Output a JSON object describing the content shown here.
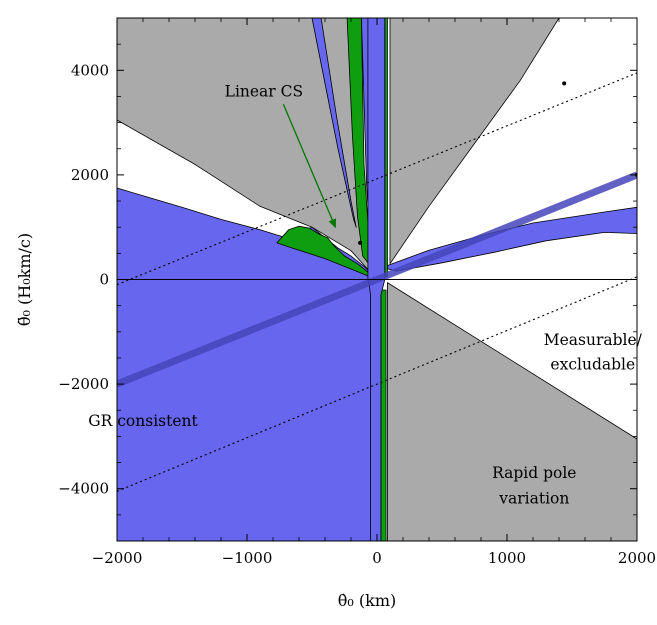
{
  "chart_data": {
    "type": "area",
    "title": "",
    "xlabel": "θ̇₀ (km)",
    "ylabel": "θ̈₀ (H₀km/c)",
    "xlim": [
      -2000,
      2000
    ],
    "ylim": [
      -5000,
      5000
    ],
    "x_ticks": [
      -2000,
      -1000,
      0,
      1000,
      2000
    ],
    "x_tick_labels": [
      "−2000",
      "−1000",
      "0",
      "1000",
      "2000"
    ],
    "y_ticks": [
      -4000,
      -2000,
      0,
      2000,
      4000
    ],
    "y_tick_labels": [
      "−4000",
      "−2000",
      "0",
      "2000",
      "4000"
    ],
    "grid": false,
    "colors": {
      "gray": "#aaaaaa",
      "blue": "#6666ee",
      "green": "#0f9e0f",
      "band": "#4646bb",
      "outline": "#000000",
      "annotation_green": "#007700"
    },
    "regions": [
      {
        "category": "rapid-pole-variation",
        "color": "gray",
        "polygons": [
          [
            [
              -2000,
              5000
            ],
            [
              -200,
              5000
            ],
            [
              -150,
              2500
            ],
            [
              -110,
              1500
            ],
            [
              -70,
              800
            ],
            [
              -30,
              300
            ],
            [
              0,
              0
            ],
            [
              -200,
              550
            ],
            [
              -500,
              1000
            ],
            [
              -900,
              1400
            ],
            [
              -1400,
              2200
            ],
            [
              -2000,
              3050
            ]
          ],
          [
            [
              100,
              5000
            ],
            [
              100,
              300
            ],
            [
              400,
              1400
            ],
            [
              750,
              2600
            ],
            [
              1100,
              3800
            ],
            [
              1400,
              5000
            ]
          ],
          [
            [
              80,
              -5000
            ],
            [
              80,
              -60
            ],
            [
              2000,
              -3050
            ],
            [
              2000,
              -5000
            ]
          ]
        ]
      },
      {
        "category": "blue-wedges",
        "color": "blue",
        "polygons": [
          [
            [
              -500,
              5000
            ],
            [
              -430,
              5000
            ],
            [
              -310,
              3100
            ],
            [
              -200,
              1500
            ],
            [
              -160,
              1000
            ],
            [
              -180,
              1150
            ],
            [
              -300,
              2500
            ]
          ],
          [
            [
              -120,
              5000
            ],
            [
              -20,
              5000
            ],
            [
              0,
              300
            ],
            [
              -20,
              150
            ],
            [
              -40,
              300
            ],
            [
              -80,
              1800
            ]
          ],
          [
            [
              40,
              230
            ],
            [
              400,
              560
            ],
            [
              800,
              840
            ],
            [
              1200,
              1080
            ],
            [
              1750,
              1290
            ],
            [
              2000,
              1380
            ],
            [
              2000,
              880
            ],
            [
              1750,
              900
            ],
            [
              1300,
              740
            ],
            [
              900,
              520
            ],
            [
              500,
              320
            ],
            [
              150,
              160
            ]
          ]
        ]
      },
      {
        "category": "gr-consistent",
        "color": "blue",
        "polygons": [
          [
            [
              -2000,
              1750
            ],
            [
              -1800,
              1600
            ],
            [
              -1500,
              1380
            ],
            [
              -1200,
              1150
            ],
            [
              -900,
              950
            ],
            [
              -700,
              800
            ],
            [
              -500,
              1000
            ],
            [
              -400,
              800
            ],
            [
              -300,
              600
            ],
            [
              -200,
              450
            ],
            [
              -100,
              250
            ],
            [
              0,
              0
            ],
            [
              0,
              -5000
            ],
            [
              -2000,
              -5000
            ]
          ]
        ]
      },
      {
        "category": "linear-cs",
        "color": "green",
        "polygons": [
          [
            [
              -230,
              5000
            ],
            [
              -120,
              5000
            ],
            [
              -100,
              2200
            ],
            [
              -70,
              1100
            ],
            [
              -40,
              500
            ],
            [
              0,
              100
            ],
            [
              -110,
              450
            ],
            [
              -150,
              1200
            ],
            [
              -190,
              2800
            ]
          ],
          [
            [
              60,
              5000
            ],
            [
              80,
              5000
            ],
            [
              80,
              50
            ],
            [
              60,
              50
            ]
          ],
          [
            [
              -770,
              700
            ],
            [
              -680,
              950
            ],
            [
              -600,
              1020
            ],
            [
              -520,
              980
            ],
            [
              -440,
              860
            ],
            [
              -380,
              800
            ],
            [
              -330,
              640
            ],
            [
              -250,
              450
            ],
            [
              -150,
              300
            ],
            [
              -60,
              120
            ],
            [
              0,
              0
            ],
            [
              -200,
              200
            ],
            [
              -400,
              400
            ],
            [
              -650,
              600
            ]
          ],
          [
            [
              30,
              -200
            ],
            [
              70,
              -200
            ],
            [
              70,
              -5000
            ],
            [
              30,
              -5000
            ]
          ]
        ]
      },
      {
        "category": "central-blue-strip",
        "color": "blue",
        "polygons": [
          [
            [
              -70,
              5000
            ],
            [
              60,
              5000
            ],
            [
              60,
              0
            ],
            [
              40,
              -200
            ],
            [
              30,
              -300
            ],
            [
              30,
              -5000
            ],
            [
              -50,
              -5000
            ],
            [
              -50,
              -300
            ],
            [
              -60,
              -100
            ],
            [
              -70,
              0
            ]
          ]
        ]
      }
    ],
    "lines": [
      {
        "name": "GR band",
        "style": "band",
        "points": [
          [
            -2000,
            -2000
          ],
          [
            2000,
            2000
          ]
        ]
      },
      {
        "name": "upper dotted",
        "style": "dotted",
        "points": [
          [
            -2000,
            -100
          ],
          [
            2000,
            3950
          ]
        ]
      },
      {
        "name": "lower dotted",
        "style": "dotted",
        "points": [
          [
            -2000,
            -4050
          ],
          [
            2000,
            50
          ]
        ]
      },
      {
        "name": "zero line",
        "style": "solid",
        "points": [
          [
            -2000,
            0
          ],
          [
            2000,
            0
          ]
        ]
      }
    ],
    "markers": [
      [
        1440,
        3750
      ],
      [
        2000,
        2000
      ],
      [
        -130,
        700
      ]
    ],
    "annotations": [
      {
        "text": "Linear CS",
        "x": -870,
        "y": 3500,
        "color": "annotation_green"
      },
      {
        "text": "Measurable/",
        "x": 1660,
        "y": -1250,
        "color": "outline"
      },
      {
        "text": "excludable",
        "x": 1660,
        "y": -1720,
        "color": "outline"
      },
      {
        "text": "GR consistent",
        "x": -1800,
        "y": -2800,
        "color": "outline"
      },
      {
        "text": "Rapid pole",
        "x": 1210,
        "y": -3800,
        "color": "outline"
      },
      {
        "text": "variation",
        "x": 1210,
        "y": -4280,
        "color": "outline"
      }
    ],
    "arrow": {
      "from": [
        -720,
        3350
      ],
      "to": [
        -320,
        1000
      ],
      "color": "annotation_green"
    }
  }
}
